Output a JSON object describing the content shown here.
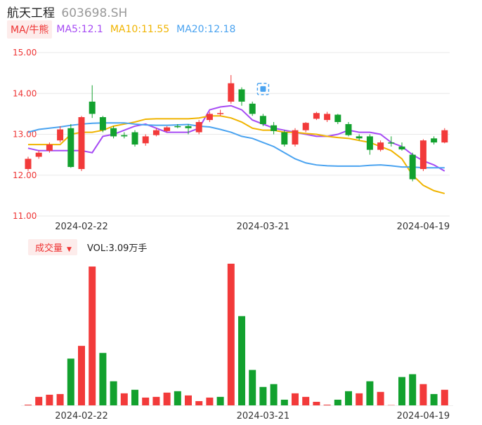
{
  "header": {
    "name": "航天工程",
    "code": "603698.SH"
  },
  "ma_bar": {
    "button_label": "MA/牛熊",
    "items": [
      {
        "label": "MA5:12.1",
        "color": "#a64bf4"
      },
      {
        "label": "MA10:11.55",
        "color": "#f0b400"
      },
      {
        "label": "MA20:12.18",
        "color": "#4aa3f0"
      }
    ]
  },
  "volume_bar": {
    "button_label": "成交量",
    "caret": "▼",
    "text": "VOL:3.09万手"
  },
  "colors": {
    "up": "#f23a3a",
    "down": "#12a12e",
    "ma5": "#a64bf4",
    "ma10": "#f0b400",
    "ma20": "#4aa3f0",
    "axis_text": "#e33"
  },
  "chart_data": [
    {
      "type": "candlestick",
      "title": "",
      "ylim": [
        11.0,
        15.0
      ],
      "yticks": [
        "15.00",
        "14.00",
        "13.00",
        "12.00",
        "11.00"
      ],
      "xticks": [
        {
          "label": "2024-02-22",
          "index": 5
        },
        {
          "label": "2024-03-21",
          "index": 22
        },
        {
          "label": "2024-04-19",
          "index": 37
        }
      ],
      "candles": [
        {
          "o": 12.15,
          "c": 12.4,
          "h": 12.45,
          "l": 12.1
        },
        {
          "o": 12.45,
          "c": 12.55,
          "h": 12.6,
          "l": 12.4
        },
        {
          "o": 12.6,
          "c": 12.75,
          "h": 12.8,
          "l": 12.55
        },
        {
          "o": 12.85,
          "c": 13.12,
          "h": 13.2,
          "l": 12.8
        },
        {
          "o": 13.15,
          "c": 12.2,
          "h": 13.25,
          "l": 12.18
        },
        {
          "o": 12.15,
          "c": 13.42,
          "h": 13.45,
          "l": 12.1
        },
        {
          "o": 13.8,
          "c": 13.5,
          "h": 14.2,
          "l": 13.4
        },
        {
          "o": 13.42,
          "c": 13.1,
          "h": 13.45,
          "l": 13.05
        },
        {
          "o": 13.15,
          "c": 12.95,
          "h": 13.2,
          "l": 12.9
        },
        {
          "o": 12.98,
          "c": 12.95,
          "h": 13.05,
          "l": 12.9
        },
        {
          "o": 13.05,
          "c": 12.75,
          "h": 13.1,
          "l": 12.7
        },
        {
          "o": 12.78,
          "c": 12.95,
          "h": 13.0,
          "l": 12.72
        },
        {
          "o": 12.98,
          "c": 13.1,
          "h": 13.15,
          "l": 12.95
        },
        {
          "o": 13.08,
          "c": 13.17,
          "h": 13.2,
          "l": 13.05
        },
        {
          "o": 13.2,
          "c": 13.18,
          "h": 13.25,
          "l": 13.15
        },
        {
          "o": 13.2,
          "c": 13.15,
          "h": 13.25,
          "l": 13.0
        },
        {
          "o": 13.05,
          "c": 13.3,
          "h": 13.35,
          "l": 13.0
        },
        {
          "o": 13.35,
          "c": 13.5,
          "h": 13.55,
          "l": 13.3
        },
        {
          "o": 13.5,
          "c": 13.52,
          "h": 13.6,
          "l": 13.45
        },
        {
          "o": 13.8,
          "c": 14.25,
          "h": 14.45,
          "l": 13.75
        },
        {
          "o": 14.1,
          "c": 13.8,
          "h": 14.15,
          "l": 13.7
        },
        {
          "o": 13.75,
          "c": 13.5,
          "h": 13.8,
          "l": 13.45
        },
        {
          "o": 13.45,
          "c": 13.25,
          "h": 13.5,
          "l": 13.2
        },
        {
          "o": 13.22,
          "c": 13.08,
          "h": 13.3,
          "l": 13.0
        },
        {
          "o": 13.05,
          "c": 12.75,
          "h": 13.1,
          "l": 12.7
        },
        {
          "o": 12.75,
          "c": 13.1,
          "h": 13.15,
          "l": 12.7
        },
        {
          "o": 13.1,
          "c": 13.28,
          "h": 13.3,
          "l": 13.05
        },
        {
          "o": 13.38,
          "c": 13.52,
          "h": 13.55,
          "l": 13.35
        },
        {
          "o": 13.35,
          "c": 13.5,
          "h": 13.55,
          "l": 13.3
        },
        {
          "o": 13.48,
          "c": 13.3,
          "h": 13.5,
          "l": 13.25
        },
        {
          "o": 13.25,
          "c": 12.98,
          "h": 13.3,
          "l": 12.95
        },
        {
          "o": 12.95,
          "c": 12.9,
          "h": 13.0,
          "l": 12.85
        },
        {
          "o": 12.95,
          "c": 12.62,
          "h": 13.0,
          "l": 12.5
        },
        {
          "o": 12.62,
          "c": 12.8,
          "h": 12.85,
          "l": 12.58
        },
        {
          "o": 12.8,
          "c": 12.78,
          "h": 12.95,
          "l": 12.7
        },
        {
          "o": 12.7,
          "c": 12.63,
          "h": 12.8,
          "l": 12.6
        },
        {
          "o": 12.5,
          "c": 11.9,
          "h": 12.55,
          "l": 11.85
        },
        {
          "o": 12.15,
          "c": 12.85,
          "h": 12.88,
          "l": 12.1
        },
        {
          "o": 12.9,
          "c": 12.8,
          "h": 12.95,
          "l": 12.75
        },
        {
          "o": 12.8,
          "c": 13.1,
          "h": 13.15,
          "l": 12.78
        }
      ],
      "series": [
        {
          "name": "MA5",
          "values": [
            12.66,
            12.6,
            12.6,
            12.6,
            12.6,
            12.6,
            12.55,
            12.95,
            13.0,
            13.1,
            13.2,
            13.25,
            13.15,
            13.05,
            13.05,
            13.05,
            13.15,
            13.6,
            13.67,
            13.7,
            13.6,
            13.35,
            13.25,
            13.15,
            13.1,
            13.05,
            13.0,
            12.95,
            12.95,
            13.0,
            13.1,
            13.05,
            13.05,
            13.0,
            12.8,
            12.7,
            12.5,
            12.35,
            12.25,
            12.1
          ]
        },
        {
          "name": "MA10",
          "values": [
            12.75,
            12.75,
            12.75,
            12.75,
            13.0,
            13.05,
            13.05,
            13.1,
            13.2,
            13.25,
            13.3,
            13.37,
            13.38,
            13.38,
            13.38,
            13.38,
            13.4,
            13.45,
            13.45,
            13.4,
            13.3,
            13.15,
            13.1,
            13.1,
            13.05,
            13.05,
            13.02,
            13.0,
            12.95,
            12.92,
            12.9,
            12.85,
            12.8,
            12.7,
            12.6,
            12.4,
            12.0,
            11.75,
            11.62,
            11.55
          ]
        },
        {
          "name": "MA20",
          "values": [
            13.05,
            13.12,
            13.15,
            13.18,
            13.22,
            13.25,
            13.27,
            13.28,
            13.28,
            13.28,
            13.25,
            13.23,
            13.22,
            13.22,
            13.23,
            13.24,
            13.2,
            13.18,
            13.12,
            13.05,
            12.95,
            12.9,
            12.8,
            12.7,
            12.55,
            12.4,
            12.3,
            12.25,
            12.23,
            12.22,
            12.22,
            12.22,
            12.24,
            12.25,
            12.23,
            12.2,
            12.2,
            12.18,
            12.18,
            12.18
          ]
        }
      ]
    },
    {
      "type": "bar",
      "title": "",
      "ylim": [
        0,
        1
      ],
      "values": [
        0.005,
        0.06,
        0.075,
        0.08,
        0.33,
        0.42,
        0.98,
        0.37,
        0.17,
        0.085,
        0.11,
        0.055,
        0.06,
        0.09,
        0.1,
        0.07,
        0.03,
        0.055,
        0.06,
        1.0,
        0.63,
        0.25,
        0.13,
        0.15,
        0.04,
        0.085,
        0.06,
        0.025,
        0.005,
        0.04,
        0.1,
        0.085,
        0.17,
        0.095,
        0.002,
        0.2,
        0.22,
        0.15,
        0.08,
        0.11
      ],
      "colors": [
        "up",
        "up",
        "up",
        "up",
        "down",
        "up",
        "up",
        "down",
        "down",
        "up",
        "down",
        "up",
        "up",
        "up",
        "down",
        "up",
        "up",
        "up",
        "down",
        "up",
        "down",
        "down",
        "down",
        "down",
        "down",
        "up",
        "up",
        "up",
        "up",
        "down",
        "down",
        "up",
        "down",
        "up",
        "up",
        "down",
        "down",
        "up",
        "down",
        "up"
      ],
      "xticks": [
        {
          "label": "2024-02-22",
          "index": 5
        },
        {
          "label": "2024-03-21",
          "index": 22
        },
        {
          "label": "2024-04-19",
          "index": 37
        }
      ]
    }
  ]
}
